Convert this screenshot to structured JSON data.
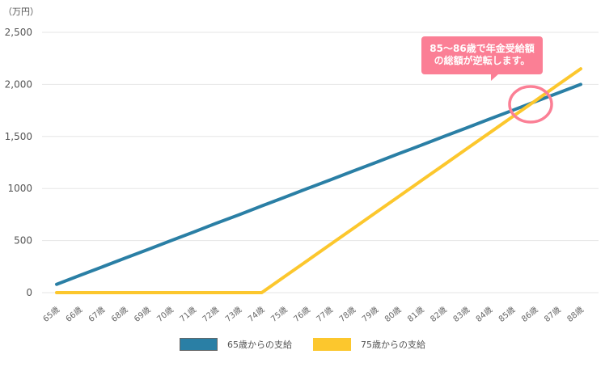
{
  "chart_data": {
    "type": "line",
    "title": "",
    "unit_label": "（万円）",
    "xlabel": "",
    "ylabel": "（万円）",
    "ylim": [
      0,
      2500
    ],
    "yticks": [
      {
        "value": 0,
        "label": "0"
      },
      {
        "value": 500,
        "label": "500"
      },
      {
        "value": 1000,
        "label": "1000"
      },
      {
        "value": 1500,
        "label": "1,500"
      },
      {
        "value": 2000,
        "label": "2,000"
      },
      {
        "value": 2500,
        "label": "2,500"
      }
    ],
    "grid": true,
    "legend_position": "bottom",
    "categories": [
      "65歳",
      "66歳",
      "67歳",
      "68歳",
      "69歳",
      "70歳",
      "71歳",
      "72歳",
      "73歳",
      "74歳",
      "75歳",
      "76歳",
      "77歳",
      "78歳",
      "79歳",
      "80歳",
      "81歳",
      "82歳",
      "83歳",
      "84歳",
      "85歳",
      "86歳",
      "87歳",
      "88歳"
    ],
    "series": [
      {
        "name": "65歳からの支給",
        "color": "#2a7fa5",
        "values": [
          80,
          164,
          247,
          331,
          414,
          498,
          581,
          665,
          748,
          832,
          915,
          999,
          1082,
          1166,
          1249,
          1333,
          1416,
          1500,
          1583,
          1667,
          1750,
          1834,
          1917,
          2000
        ]
      },
      {
        "name": "75歳からの支給",
        "color": "#fcc72d",
        "values": [
          0,
          0,
          0,
          0,
          0,
          0,
          0,
          0,
          0,
          0,
          154,
          307,
          461,
          614,
          768,
          921,
          1075,
          1228,
          1382,
          1535,
          1689,
          1842,
          1996,
          2150
        ]
      }
    ],
    "annotations": [
      {
        "type": "callout",
        "text": "85～86歳で年金受給額の総額が逆転します。",
        "color": "#fb7f95"
      },
      {
        "type": "circle",
        "target": "crossover between 85歳 and 86歳",
        "color": "#fb7f95"
      }
    ]
  },
  "callout": {
    "line1": "85～86歳で年金受給額",
    "line2": "の総額が逆転します。"
  },
  "legend": {
    "items": [
      {
        "label": "65歳からの支給",
        "color": "#2a7fa5"
      },
      {
        "label": "75歳からの支給",
        "color": "#fcc72d"
      }
    ]
  }
}
